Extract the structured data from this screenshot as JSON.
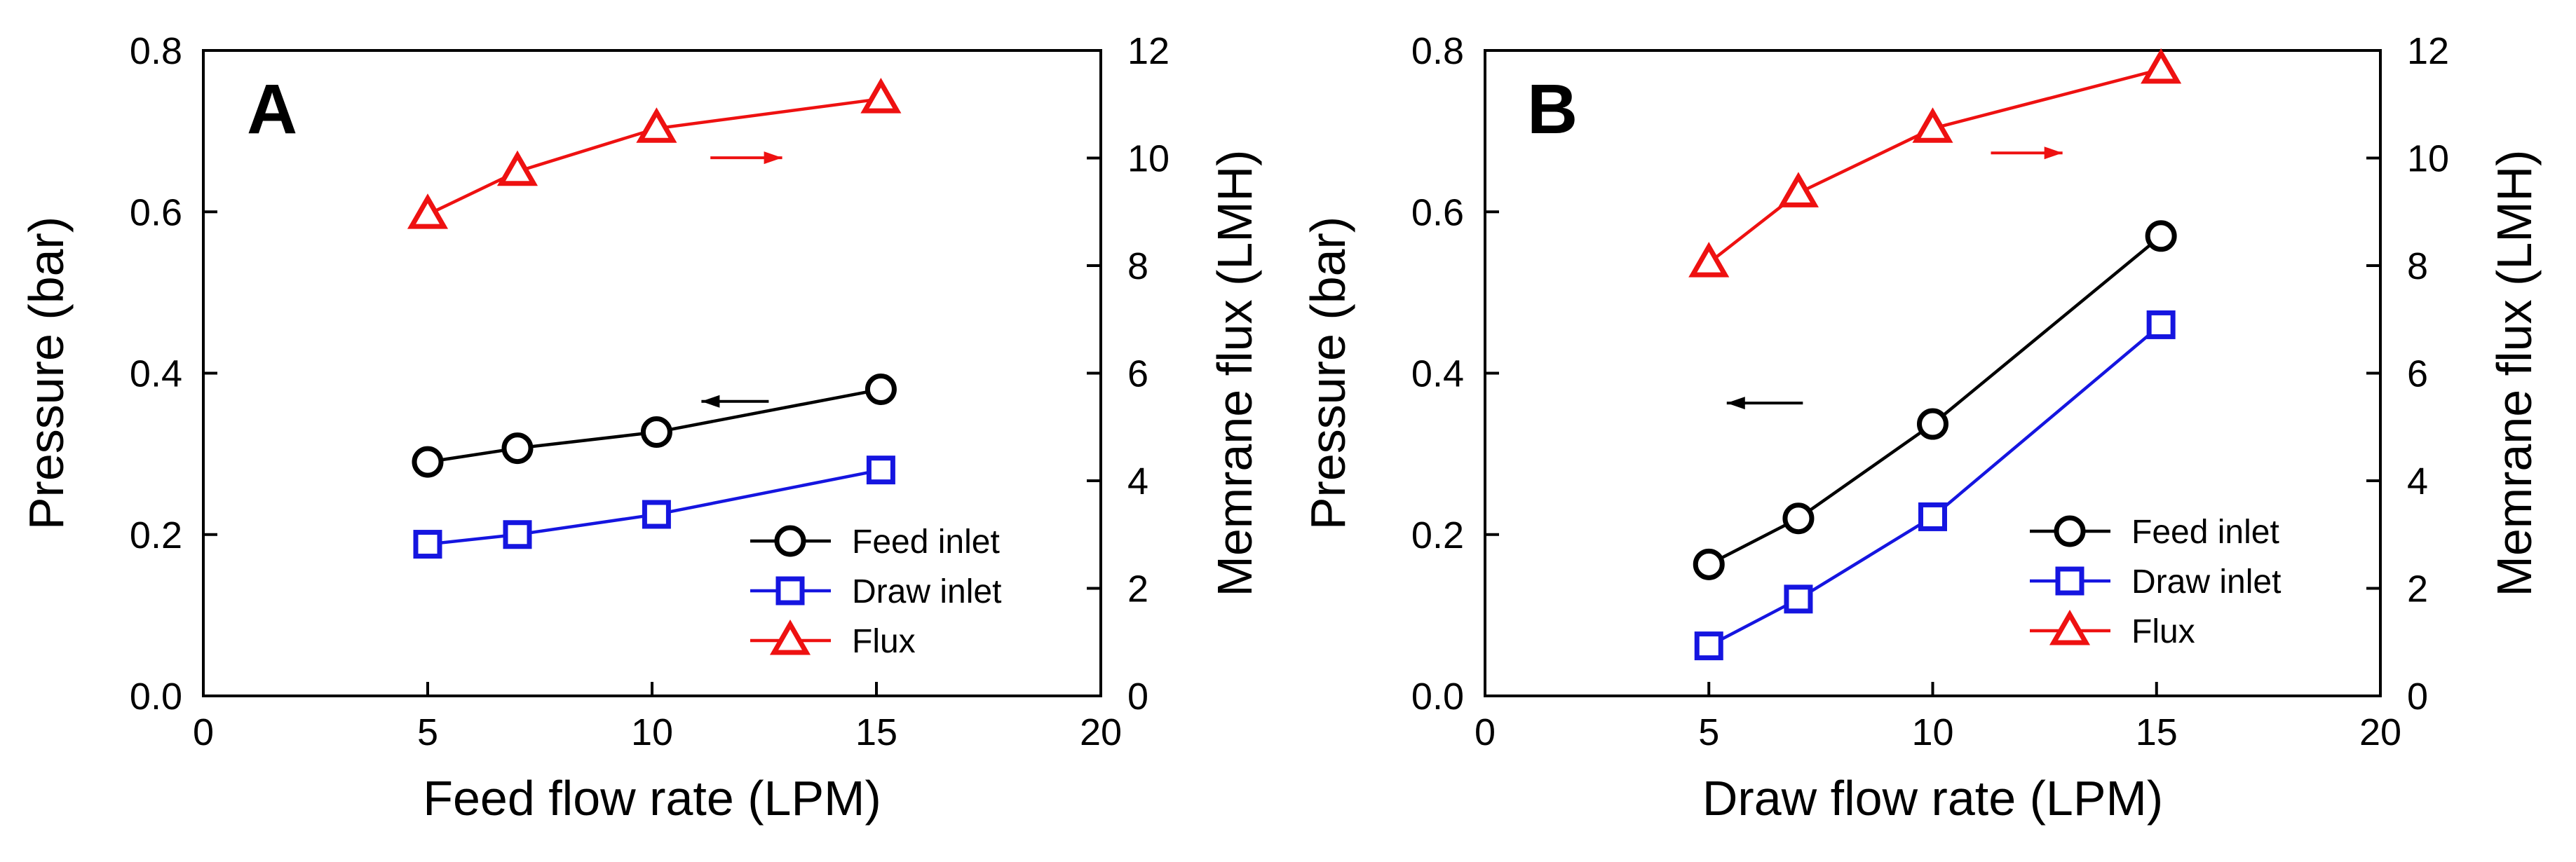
{
  "chart_data": [
    {
      "panel": "A",
      "type": "line",
      "xlabel": "Feed flow rate (LPM)",
      "ylabel": "Pressure (bar)",
      "y2label": "Memrane flux (LMH)",
      "xlim": [
        0,
        20
      ],
      "xticks": [
        "0",
        "5",
        "10",
        "15",
        "20"
      ],
      "ylim": [
        0,
        0.8
      ],
      "yticks": [
        "0.0",
        "0.2",
        "0.4",
        "0.6",
        "0.8"
      ],
      "y2lim": [
        0,
        12
      ],
      "y2ticks": [
        "0",
        "2",
        "4",
        "6",
        "8",
        "10",
        "12"
      ],
      "grid": false,
      "legend_position": "bottom-right",
      "series": [
        {
          "name": "Feed inlet",
          "axis": "left",
          "color": "#000000",
          "marker": "circle",
          "x": [
            5,
            7,
            10.1,
            15.1
          ],
          "values": [
            0.29,
            0.307,
            0.327,
            0.38
          ]
        },
        {
          "name": "Draw inlet",
          "axis": "left",
          "color": "#1515e0",
          "marker": "square",
          "x": [
            5,
            7,
            10.1,
            15.1
          ],
          "values": [
            0.188,
            0.2,
            0.225,
            0.28
          ]
        },
        {
          "name": "Flux",
          "axis": "right",
          "color": "#ee1111",
          "marker": "triangle",
          "x": [
            5,
            7,
            10.1,
            15.1
          ],
          "values": [
            8.95,
            9.75,
            10.55,
            11.1
          ]
        }
      ],
      "annotations": [
        {
          "type": "arrow",
          "direction": "left",
          "color": "#000000",
          "x": [
            12.6,
            11.1
          ],
          "y": 0.365
        },
        {
          "type": "arrow",
          "direction": "right",
          "color": "#ee1111",
          "x": [
            11.3,
            12.9
          ],
          "y": 0.667
        }
      ]
    },
    {
      "panel": "B",
      "type": "line",
      "xlabel": "Draw flow rate (LPM)",
      "ylabel": "Pressure (bar)",
      "y2label": "Memrane flux (LMH)",
      "xlim": [
        0,
        20
      ],
      "xticks": [
        "0",
        "5",
        "10",
        "15",
        "20"
      ],
      "ylim": [
        0,
        0.8
      ],
      "yticks": [
        "0.0",
        "0.2",
        "0.4",
        "0.6",
        "0.8"
      ],
      "y2lim": [
        0,
        12
      ],
      "y2ticks": [
        "0",
        "2",
        "4",
        "6",
        "8",
        "10",
        "12"
      ],
      "grid": false,
      "legend_position": "bottom-right",
      "series": [
        {
          "name": "Feed inlet",
          "axis": "left",
          "color": "#000000",
          "marker": "circle",
          "x": [
            5,
            7,
            10,
            15.1
          ],
          "values": [
            0.163,
            0.22,
            0.337,
            0.57
          ]
        },
        {
          "name": "Draw inlet",
          "axis": "left",
          "color": "#1515e0",
          "marker": "square",
          "x": [
            5,
            7,
            10,
            15.1
          ],
          "values": [
            0.062,
            0.12,
            0.222,
            0.46
          ]
        },
        {
          "name": "Flux",
          "axis": "right",
          "color": "#ee1111",
          "marker": "triangle",
          "x": [
            5,
            7,
            10,
            15.1
          ],
          "values": [
            8.05,
            9.35,
            10.55,
            11.65
          ]
        }
      ],
      "annotations": [
        {
          "type": "arrow",
          "direction": "left",
          "color": "#000000",
          "x": [
            7.1,
            5.4
          ],
          "y": 0.363
        },
        {
          "type": "arrow",
          "direction": "right",
          "color": "#ee1111",
          "x": [
            11.3,
            12.9
          ],
          "y": 0.673
        }
      ]
    }
  ]
}
